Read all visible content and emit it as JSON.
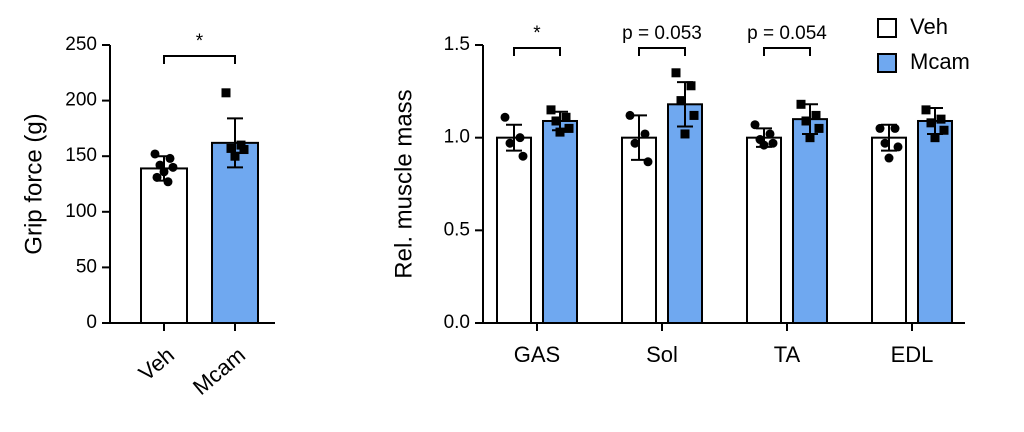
{
  "chart_data": [
    {
      "type": "bar",
      "y_label": "Grip force (g)",
      "categories": [
        "Veh",
        "Mcam"
      ],
      "values": [
        139,
        162
      ],
      "errors": [
        11,
        22
      ],
      "colors": [
        "#ffffff",
        "#6fa8f0"
      ],
      "points": [
        [
          152,
          148,
          142,
          140,
          136,
          131,
          127
        ],
        [
          207,
          160,
          157,
          156,
          150
        ]
      ],
      "annotation": "*",
      "ylim": [
        0,
        250
      ],
      "yticks": [
        0,
        50,
        100,
        150,
        200,
        250
      ]
    },
    {
      "type": "bar",
      "y_label": "Rel. muscle mass",
      "categories": [
        "GAS",
        "Sol",
        "TA",
        "EDL"
      ],
      "series": [
        {
          "name": "Veh",
          "color": "#ffffff",
          "values": [
            1.0,
            1.0,
            1.0,
            1.0
          ],
          "errors": [
            0.07,
            0.12,
            0.05,
            0.07
          ],
          "points": [
            [
              1.11,
              1.0,
              0.97,
              0.9
            ],
            [
              1.12,
              1.02,
              0.97,
              0.87
            ],
            [
              1.07,
              1.02,
              0.99,
              0.97,
              0.96
            ],
            [
              1.05,
              1.05,
              0.97,
              0.95,
              0.89
            ]
          ]
        },
        {
          "name": "Mcam",
          "color": "#6fa8f0",
          "values": [
            1.09,
            1.18,
            1.1,
            1.09
          ],
          "errors": [
            0.05,
            0.12,
            0.08,
            0.07
          ],
          "points": [
            [
              1.15,
              1.11,
              1.09,
              1.05,
              1.03
            ],
            [
              1.35,
              1.28,
              1.2,
              1.12,
              1.02
            ],
            [
              1.18,
              1.12,
              1.09,
              1.05,
              1.0
            ],
            [
              1.15,
              1.1,
              1.08,
              1.04,
              1.0
            ]
          ]
        }
      ],
      "annotations": [
        "*",
        "p = 0.053",
        "p = 0.054",
        null
      ],
      "legend": "top-right",
      "ylim": [
        0,
        1.5
      ],
      "yticks": [
        {
          "value": 0,
          "label": "0.0"
        },
        0.5,
        {
          "value": 1,
          "label": "1.0"
        },
        1.5
      ]
    }
  ]
}
